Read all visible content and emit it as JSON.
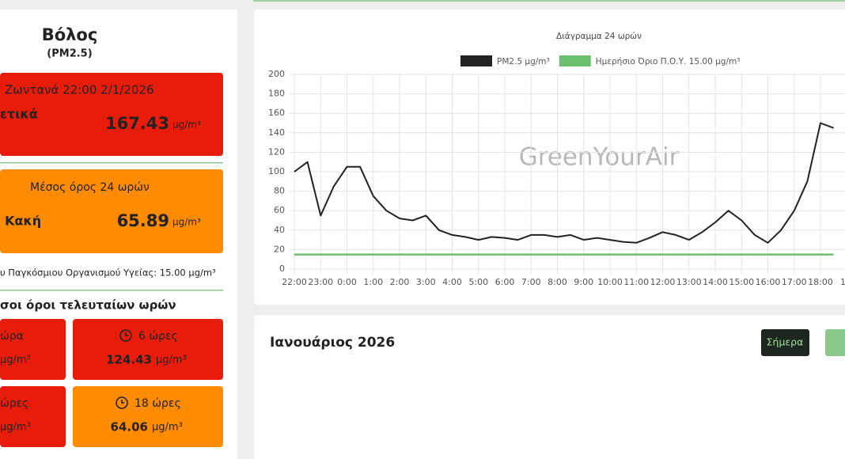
{
  "sidebar": {
    "city": "Βόλος",
    "pollutant": "(PM2.5)",
    "live": {
      "label": "Ζωντανά 22:00 2/1/2026",
      "status": "ετικά",
      "value": 167.43,
      "unit": "μg/m³"
    },
    "avg24": {
      "label": "Μέσος όρος 24 ωρών",
      "status": "Κακή",
      "value": 65.89,
      "unit": "μg/m³"
    },
    "who_note": "υ Παγκόσμιου Οργανισμού Υγείας: 15.00 μg/m³",
    "recent_heading": "σοι όροι τελευταίων ωρών",
    "cards": [
      {
        "label": "ώρα",
        "unit": "μg/m³"
      },
      {
        "label": "6 ώρες",
        "value": 124.43,
        "unit": "μg/m³"
      },
      {
        "label": "ώρες",
        "unit": "μg/m³"
      },
      {
        "label": "18 ώρες",
        "value": 64.06,
        "unit": "μg/m³"
      }
    ]
  },
  "chart_data": {
    "type": "line",
    "title": "Διάγραμμα 24 ωρών",
    "watermark": "GreenYourAir",
    "categories": [
      "22:00",
      "23:00",
      "0:00",
      "1:00",
      "2:00",
      "3:00",
      "4:00",
      "5:00",
      "6:00",
      "7:00",
      "8:00",
      "9:00",
      "10:00",
      "11:00",
      "12:00",
      "13:00",
      "14:00",
      "15:00",
      "16:00",
      "17:00",
      "18:00",
      "1"
    ],
    "ylim": [
      0,
      200
    ],
    "yticks": [
      0,
      20,
      40,
      60,
      80,
      100,
      120,
      140,
      160,
      180,
      200
    ],
    "grid": true,
    "series": [
      {
        "name": "PM2.5 μg/m³",
        "color": "#222222",
        "x": [
          "22:00",
          "22:30",
          "23:00",
          "23:30",
          "0:00",
          "0:30",
          "1:00",
          "1:30",
          "2:00",
          "2:30",
          "3:00",
          "3:30",
          "4:00",
          "4:30",
          "5:00",
          "5:30",
          "6:00",
          "6:30",
          "7:00",
          "7:30",
          "8:00",
          "8:30",
          "9:00",
          "9:30",
          "10:00",
          "10:30",
          "11:00",
          "11:30",
          "12:00",
          "12:30",
          "13:00",
          "13:30",
          "14:00",
          "14:30",
          "15:00",
          "15:30",
          "16:00",
          "16:30",
          "17:00",
          "17:30",
          "18:00",
          "18:30"
        ],
        "values": [
          100,
          110,
          55,
          85,
          105,
          105,
          75,
          60,
          52,
          50,
          55,
          40,
          35,
          33,
          30,
          33,
          32,
          30,
          35,
          35,
          33,
          35,
          30,
          32,
          30,
          28,
          27,
          32,
          38,
          35,
          30,
          38,
          48,
          60,
          50,
          35,
          27,
          40,
          60,
          90,
          150,
          145
        ]
      },
      {
        "name": "Ημερήσιο Όριο Π.Ο.Υ. 15.00 μg/m³",
        "color": "#6cbf6c",
        "x": [
          "22:00",
          "18:30"
        ],
        "values": [
          15,
          15
        ]
      }
    ]
  },
  "calendar": {
    "title": "Ιανουάριος 2026",
    "today_button": "Σήμερα"
  }
}
